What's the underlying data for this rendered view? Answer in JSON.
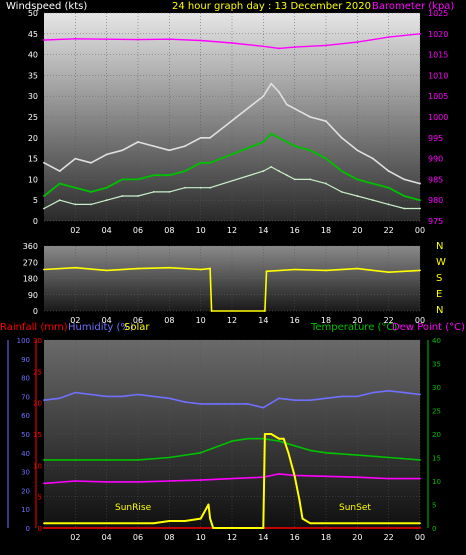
{
  "header": {
    "left_label": "Windspeed (kts)",
    "title": "24 hour graph day : 13 December 2020",
    "right_label": "Barometer (kpa)"
  },
  "colors": {
    "background": "#000000",
    "title": "#FFFF00",
    "wind": "#FFFFFF",
    "barometer": "#FF00FF",
    "gust": "#E0E0E0",
    "avg_wind": "#00C000",
    "wind_low": "#C8F0C8",
    "direction": "#FFFF00",
    "rainfall": "#FF0000",
    "humidity": "#7070FF",
    "temperature": "#00C000",
    "dew_point": "#FF00FF",
    "solar": "#FFFF00"
  },
  "labels": {
    "compass": [
      "N",
      "W",
      "S",
      "E",
      "N"
    ],
    "rain_label": "Rainfall (mm)",
    "humidity_label": "Humidity (%)",
    "solar_label": "Solar",
    "temperature_label": "Temperature (°C)",
    "dewpoint_label": "Dew Point (°C)",
    "sunrise": "SunRise",
    "sunset": "SunSet"
  },
  "chart_data": [
    {
      "type": "line",
      "x_ticks": [
        "02",
        "04",
        "06",
        "08",
        "10",
        "12",
        "14",
        "16",
        "18",
        "20",
        "22",
        "00"
      ],
      "left_axis": {
        "ticks": [
          0,
          5,
          10,
          15,
          20,
          25,
          30,
          35,
          40,
          45,
          50
        ],
        "ylim": [
          0,
          50
        ]
      },
      "right_axis": {
        "ticks": [
          975,
          980,
          985,
          990,
          995,
          1000,
          1005,
          1010,
          1015,
          1020,
          1025
        ],
        "ylim": [
          975,
          1025
        ]
      },
      "series": [
        {
          "key": "gust",
          "x": [
            0,
            1,
            2,
            3,
            4,
            5,
            6,
            7,
            8,
            9,
            10,
            10.6,
            14.0,
            14.5,
            15,
            15.5,
            16,
            17,
            18,
            19,
            20,
            21,
            22,
            23,
            24
          ],
          "y": [
            14,
            12,
            15,
            14,
            16,
            17,
            19,
            18,
            17,
            18,
            20,
            20,
            30,
            33,
            31,
            28,
            27,
            25,
            24,
            20,
            17,
            15,
            12,
            10,
            9
          ]
        },
        {
          "key": "avg",
          "x": [
            0,
            1,
            2,
            3,
            4,
            5,
            6,
            7,
            8,
            9,
            10,
            10.6,
            14.0,
            14.5,
            15,
            15.5,
            16,
            17,
            18,
            19,
            20,
            21,
            22,
            23,
            24
          ],
          "y": [
            6,
            9,
            8,
            7,
            8,
            10,
            10,
            11,
            11,
            12,
            14,
            14,
            19,
            21,
            20,
            19,
            18,
            17,
            15,
            12,
            10,
            9,
            8,
            6,
            5
          ]
        },
        {
          "key": "low",
          "x": [
            0,
            1,
            2,
            3,
            4,
            5,
            6,
            7,
            8,
            9,
            10,
            10.6,
            14.0,
            14.5,
            15,
            15.5,
            16,
            17,
            18,
            19,
            20,
            21,
            22,
            23,
            24
          ],
          "y": [
            3,
            5,
            4,
            4,
            5,
            6,
            6,
            7,
            7,
            8,
            8,
            8,
            12,
            13,
            12,
            11,
            10,
            10,
            9,
            7,
            6,
            5,
            4,
            3,
            3
          ]
        },
        {
          "key": "barometer",
          "x": [
            0,
            2,
            4,
            6,
            8,
            10,
            12,
            14,
            15,
            16,
            18,
            20,
            22,
            24
          ],
          "y": [
            1018.5,
            1018.8,
            1018.7,
            1018.6,
            1018.7,
            1018.4,
            1017.8,
            1017.0,
            1016.5,
            1016.8,
            1017.2,
            1018.0,
            1019.2,
            1020.0
          ]
        }
      ]
    },
    {
      "type": "line",
      "x_ticks": [
        "02",
        "04",
        "06",
        "08",
        "10",
        "12",
        "14",
        "16",
        "18",
        "20",
        "22",
        "00"
      ],
      "left_axis": {
        "ticks": [
          0,
          90,
          180,
          270,
          360
        ],
        "ylim": [
          0,
          360
        ]
      },
      "series": [
        {
          "key": "direction",
          "x": [
            0,
            2,
            4,
            6,
            8,
            10,
            10.6,
            10.7,
            14.1,
            14.2,
            16,
            18,
            20,
            22,
            24
          ],
          "y": [
            230,
            240,
            225,
            235,
            240,
            230,
            235,
            0,
            0,
            220,
            230,
            225,
            235,
            215,
            225
          ]
        }
      ]
    },
    {
      "type": "line",
      "x_ticks": [
        "02",
        "04",
        "06",
        "08",
        "10",
        "12",
        "14",
        "16",
        "18",
        "20",
        "22",
        "00"
      ],
      "rain_axis": {
        "ticks": [
          0,
          5,
          10,
          15,
          20,
          25,
          30
        ],
        "ylim": [
          0,
          30
        ]
      },
      "humidity_axis": {
        "ticks": [
          0,
          10,
          20,
          30,
          40,
          50,
          60,
          70,
          80,
          90,
          100
        ],
        "ylim": [
          0,
          100
        ]
      },
      "temperature_axis": {
        "ticks": [
          0,
          5,
          10,
          15,
          20,
          25,
          30,
          35,
          40
        ],
        "ylim": [
          0,
          40
        ]
      },
      "series": [
        {
          "key": "humidity",
          "x": [
            0,
            1,
            2,
            3,
            4,
            5,
            6,
            7,
            8,
            9,
            10,
            11,
            12,
            13,
            14,
            15,
            16,
            17,
            18,
            19,
            20,
            21,
            22,
            23,
            24
          ],
          "y": [
            68,
            69,
            72,
            71,
            70,
            70,
            71,
            70,
            69,
            67,
            66,
            66,
            66,
            66,
            64,
            69,
            68,
            68,
            69,
            70,
            70,
            72,
            73,
            72,
            71
          ]
        },
        {
          "key": "temperature",
          "x": [
            0,
            2,
            4,
            6,
            8,
            10,
            12,
            13,
            14,
            15,
            16,
            17,
            18,
            20,
            22,
            24
          ],
          "y": [
            14.5,
            14.5,
            14.5,
            14.5,
            15,
            16,
            18.5,
            19,
            19,
            18.5,
            17.5,
            16.5,
            16,
            15.5,
            15,
            14.5
          ]
        },
        {
          "key": "dew_point",
          "x": [
            0,
            2,
            4,
            6,
            8,
            10,
            12,
            14,
            15,
            16,
            18,
            20,
            22,
            24
          ],
          "y": [
            9.5,
            10,
            9.8,
            9.8,
            10,
            10.2,
            10.5,
            10.8,
            11.5,
            11.2,
            11,
            10.8,
            10.5,
            10.5
          ]
        },
        {
          "key": "rainfall",
          "x": [
            0,
            24
          ],
          "y": [
            0,
            0
          ]
        },
        {
          "key": "solar",
          "x": [
            0,
            6,
            7,
            8,
            9,
            10,
            10.5,
            10.6,
            10.8,
            14.0,
            14.1,
            14.5,
            15,
            15.3,
            15.6,
            16,
            16.3,
            16.5,
            17,
            20,
            22,
            24
          ],
          "y": [
            1,
            1,
            1,
            1.5,
            1.5,
            2,
            5,
            2,
            0,
            0,
            20,
            20,
            19,
            19,
            16,
            11,
            6,
            2,
            1,
            1,
            1,
            1
          ]
        }
      ]
    }
  ]
}
